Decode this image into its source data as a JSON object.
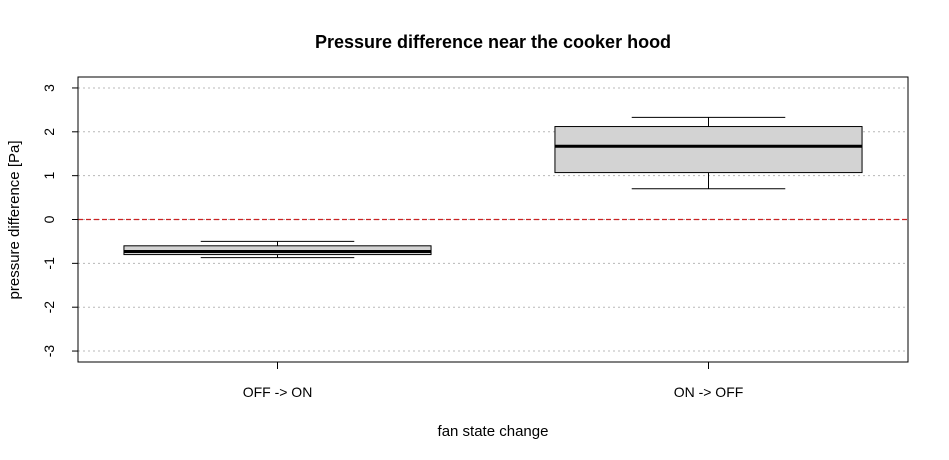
{
  "chart_data": {
    "type": "boxplot",
    "title": "Pressure difference near the cooker hood",
    "xlabel": "fan state change",
    "ylabel": "pressure difference [Pa]",
    "ylim": [
      -3.25,
      3.25
    ],
    "yticks": [
      -3,
      -2,
      -1,
      0,
      1,
      2,
      3
    ],
    "grid": "horizontal dotted",
    "reference_line": {
      "y": 0,
      "color": "#cc2222",
      "style": "dashed"
    },
    "box_fill": "#d3d3d3",
    "categories": [
      "OFF -> ON",
      "ON -> OFF"
    ],
    "boxes": [
      {
        "category": "OFF -> ON",
        "min": -0.87,
        "q1": -0.8,
        "median": -0.73,
        "q3": -0.6,
        "max": -0.5
      },
      {
        "category": "ON -> OFF",
        "min": 0.7,
        "q1": 1.07,
        "median": 1.67,
        "q3": 2.12,
        "max": 2.33
      }
    ]
  }
}
